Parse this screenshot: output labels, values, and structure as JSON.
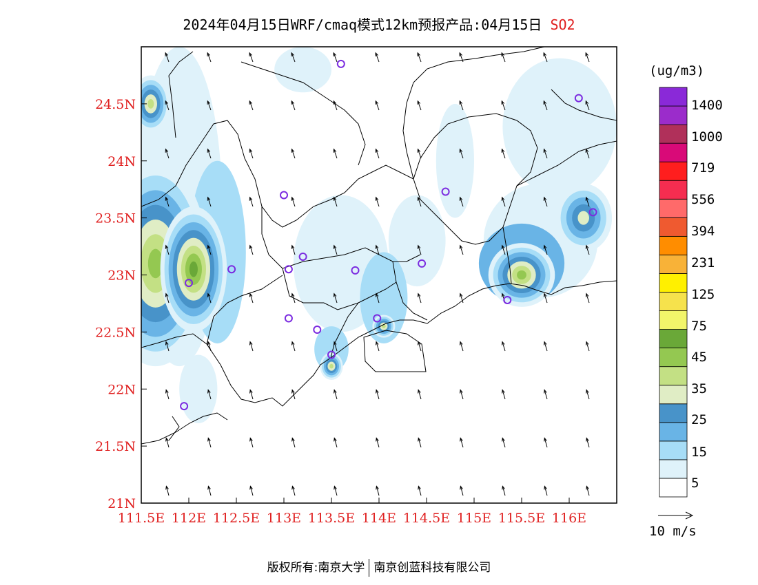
{
  "title": {
    "main": "2024年04月15日WRF/cmaq模式12km预报产品:04月15日",
    "species": "SO2"
  },
  "footer": {
    "left": "版权所有:南京大学",
    "right": "南京创蓝科技有限公司"
  },
  "map": {
    "lon_range": [
      111.5,
      116.5
    ],
    "lat_range": [
      21,
      25
    ],
    "lon_ticks": [
      {
        "v": 111.5,
        "label": "111.5E"
      },
      {
        "v": 112,
        "label": "112E"
      },
      {
        "v": 112.5,
        "label": "112.5E"
      },
      {
        "v": 113,
        "label": "113E"
      },
      {
        "v": 113.5,
        "label": "113.5E"
      },
      {
        "v": 114,
        "label": "114E"
      },
      {
        "v": 114.5,
        "label": "114.5E"
      },
      {
        "v": 115,
        "label": "115E"
      },
      {
        "v": 115.5,
        "label": "115.5E"
      },
      {
        "v": 116,
        "label": "116E"
      }
    ],
    "lat_ticks": [
      {
        "v": 21,
        "label": "21N"
      },
      {
        "v": 21.5,
        "label": "21.5N"
      },
      {
        "v": 22,
        "label": "22N"
      },
      {
        "v": 22.5,
        "label": "22.5N"
      },
      {
        "v": 23,
        "label": "23N"
      },
      {
        "v": 23.5,
        "label": "23.5N"
      },
      {
        "v": 24,
        "label": "24N"
      },
      {
        "v": 24.5,
        "label": "24.5N"
      }
    ],
    "stations": [
      [
        113.6,
        24.85
      ],
      [
        116.1,
        24.55
      ],
      [
        113.0,
        23.7
      ],
      [
        114.7,
        23.73
      ],
      [
        116.25,
        23.55
      ],
      [
        112.45,
        23.05
      ],
      [
        113.05,
        23.05
      ],
      [
        113.2,
        23.16
      ],
      [
        113.75,
        23.04
      ],
      [
        114.45,
        23.1
      ],
      [
        112.0,
        22.93
      ],
      [
        115.35,
        22.78
      ],
      [
        113.05,
        22.62
      ],
      [
        113.35,
        22.52
      ],
      [
        113.98,
        22.62
      ],
      [
        113.5,
        22.3
      ],
      [
        111.95,
        21.85
      ]
    ],
    "plumes": [
      {
        "lon": 111.65,
        "lat": 23.1,
        "rx": 0.55,
        "ry": 0.9,
        "level": 4
      },
      {
        "lon": 112.05,
        "lat": 23.05,
        "rx": 0.35,
        "ry": 0.55,
        "level": 5
      },
      {
        "lon": 111.6,
        "lat": 24.5,
        "rx": 0.2,
        "ry": 0.25,
        "level": 3
      },
      {
        "lon": 115.5,
        "lat": 23.0,
        "rx": 0.35,
        "ry": 0.28,
        "level": 4
      },
      {
        "lon": 114.05,
        "lat": 22.55,
        "rx": 0.12,
        "ry": 0.1,
        "level": 3
      },
      {
        "lon": 113.5,
        "lat": 22.2,
        "rx": 0.12,
        "ry": 0.12,
        "level": 3
      },
      {
        "lon": 116.15,
        "lat": 23.5,
        "rx": 0.3,
        "ry": 0.3,
        "level": 2
      }
    ],
    "wind_vectors_note": ""
  },
  "legend": {
    "unit": "(ug/m3)",
    "labels": [
      "1400",
      "1000",
      "719",
      "556",
      "394",
      "231",
      "125",
      "75",
      "45",
      "35",
      "25",
      "15",
      "5"
    ],
    "colors": [
      "#ffffff",
      "#dff2fa",
      "#a7ddf7",
      "#69b4e6",
      "#4893c9",
      "#e0edc5",
      "#c3e084",
      "#94c851",
      "#6aa838",
      "#f2f56a",
      "#f6e24c",
      "#fff000",
      "#f8b238",
      "#ff8d00",
      "#ef5a30",
      "#ff6a6a",
      "#f52d50",
      "#ff1e1e",
      "#d90a78",
      "#b0305a",
      "#9b2ccb",
      "#8a29d8"
    ],
    "wind_scale_label": "10 m/s"
  }
}
